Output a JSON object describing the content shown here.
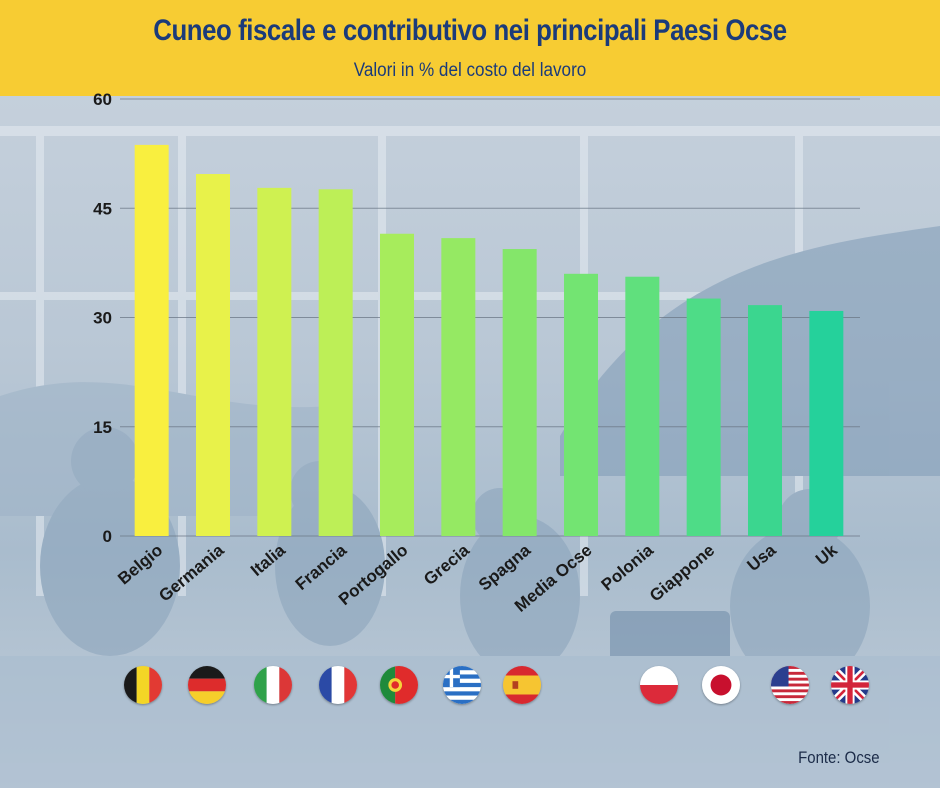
{
  "header": {
    "title": "Cuneo fiscale e contributivo nei principali Paesi Ocse",
    "subtitle": "Valori in % del costo del lavoro"
  },
  "source": "Fonte: Ocse",
  "colors": {
    "header_bg": "#f7cc33",
    "title": "#1b3b7a",
    "bar_start": "#f9f03c",
    "bar_end": "#1fd0a0"
  },
  "flags": [
    "belgium-flag",
    "germany-flag",
    "italy-flag",
    "france-flag",
    "portugal-flag",
    "greece-flag",
    "spain-flag",
    "poland-flag",
    "japan-flag",
    "usa-flag",
    "uk-flag"
  ],
  "chart_data": {
    "type": "bar",
    "title": "Cuneo fiscale e contributivo nei principali Paesi Ocse",
    "subtitle": "Valori in % del costo del lavoro",
    "categories": [
      "Belgio",
      "Germania",
      "Italia",
      "Francia",
      "Portogallo",
      "Grecia",
      "Spagna",
      "Media Ocse",
      "Polonia",
      "Giappone",
      "Usa",
      "Uk"
    ],
    "values": [
      53.7,
      49.7,
      47.8,
      47.6,
      41.5,
      40.9,
      39.4,
      36.0,
      35.6,
      32.6,
      31.7,
      30.9
    ],
    "yticks": [
      0,
      15,
      30,
      45,
      60
    ],
    "ylim": [
      0,
      60
    ],
    "bar_colors": [
      "#f9ef3f",
      "#e8f24a",
      "#cff151",
      "#bdef57",
      "#a7ec5c",
      "#95e963",
      "#84e66a",
      "#73e472",
      "#60e07d",
      "#4edc87",
      "#3bd68f",
      "#25d19b"
    ],
    "grid": true,
    "legend": "none"
  }
}
